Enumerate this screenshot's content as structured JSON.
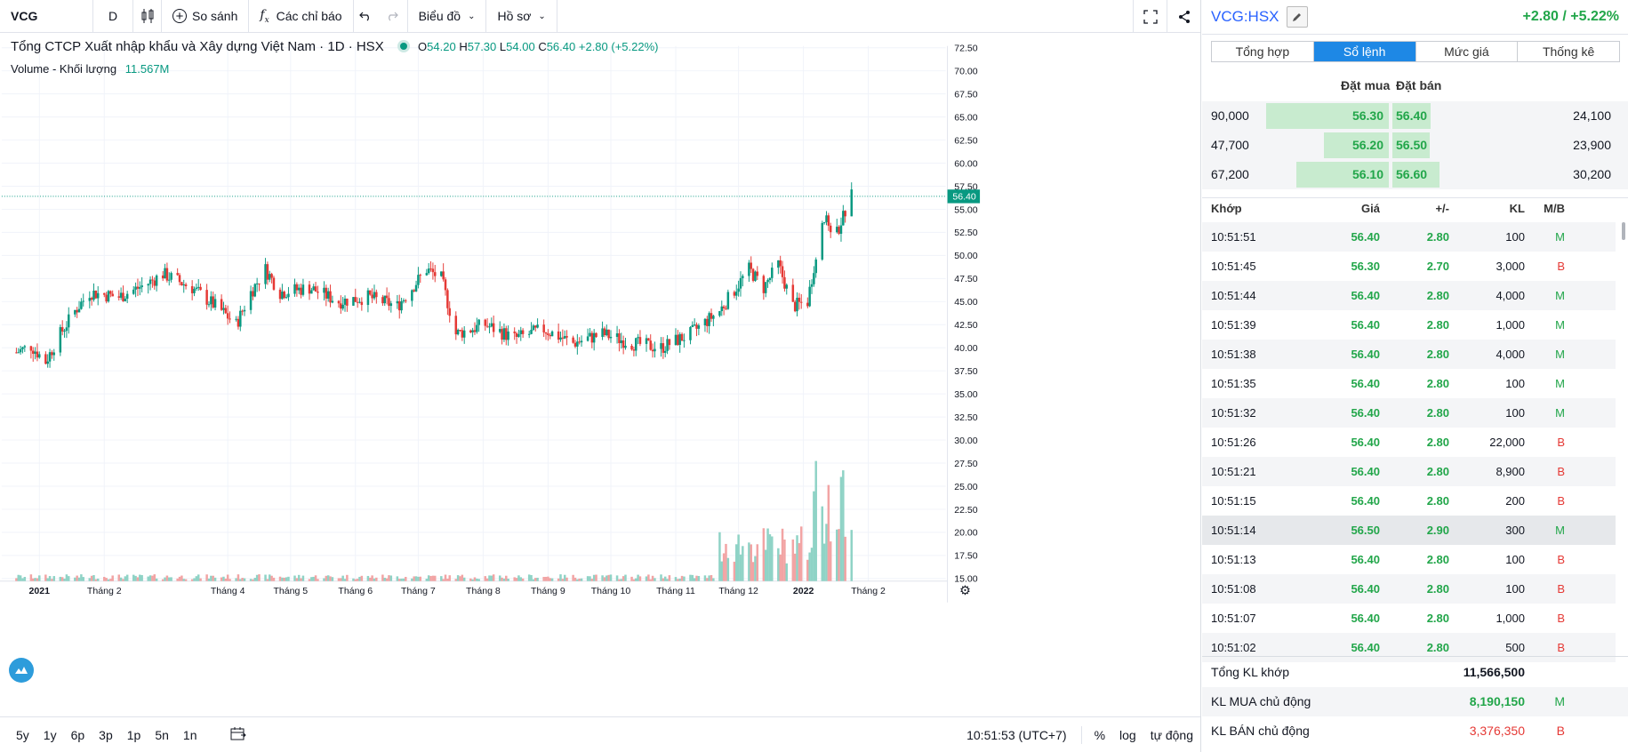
{
  "toolbar": {
    "symbol": "VCG",
    "interval": "D",
    "compare_label": "So sánh",
    "indicators_label": "Các chỉ báo",
    "chart_type_label": "Biểu đồ",
    "profile_label": "Hồ sơ"
  },
  "legend": {
    "name": "Tổng CTCP Xuất nhập khẩu và Xây dựng Việt Nam · 1D · HSX",
    "o_label": "O",
    "o": "54.20",
    "h_label": "H",
    "h": "57.30",
    "l_label": "L",
    "l": "54.00",
    "c_label": "C",
    "c": "56.40",
    "change": "+2.80 (+5.22%)",
    "volume_label": "Volume - Khối lượng",
    "volume_value": "11.567M"
  },
  "chart_data": {
    "type": "candlestick",
    "y_ticks": [
      "72.50",
      "70.00",
      "67.50",
      "65.00",
      "62.50",
      "60.00",
      "57.50",
      "55.00",
      "52.50",
      "50.00",
      "47.50",
      "45.00",
      "42.50",
      "40.00",
      "37.50",
      "35.00",
      "32.50",
      "30.00",
      "27.50",
      "25.00",
      "22.50",
      "20.00",
      "17.50",
      "15.00"
    ],
    "ylim": [
      15.0,
      72.5
    ],
    "last_price_label": "56.40",
    "x_ticks": [
      "2021",
      "Tháng 2",
      "Tháng 4",
      "Tháng 5",
      "Tháng 6",
      "Tháng 7",
      "Tháng 8",
      "Tháng 9",
      "Tháng 10",
      "Tháng 11",
      "Tháng 12",
      "2022",
      "Tháng 2"
    ],
    "close_path": [
      {
        "x": "2020-12-21",
        "y": 39.5
      },
      {
        "x": "2020-12-28",
        "y": 40.2
      },
      {
        "x": "2021-01-04",
        "y": 38.5
      },
      {
        "x": "2021-01-11",
        "y": 41.5
      },
      {
        "x": "2021-01-18",
        "y": 44.0
      },
      {
        "x": "2021-01-25",
        "y": 46.0
      },
      {
        "x": "2021-02-08",
        "y": 45.5
      },
      {
        "x": "2021-02-22",
        "y": 47.0
      },
      {
        "x": "2021-03-01",
        "y": 48.0
      },
      {
        "x": "2021-03-15",
        "y": 46.5
      },
      {
        "x": "2021-03-29",
        "y": 44.0
      },
      {
        "x": "2021-04-05",
        "y": 42.5
      },
      {
        "x": "2021-04-12",
        "y": 46.0
      },
      {
        "x": "2021-04-19",
        "y": 48.5
      },
      {
        "x": "2021-04-26",
        "y": 46.0
      },
      {
        "x": "2021-05-10",
        "y": 46.5
      },
      {
        "x": "2021-05-24",
        "y": 45.0
      },
      {
        "x": "2021-06-07",
        "y": 45.5
      },
      {
        "x": "2021-06-21",
        "y": 44.5
      },
      {
        "x": "2021-07-05",
        "y": 48.5
      },
      {
        "x": "2021-07-12",
        "y": 47.5
      },
      {
        "x": "2021-07-19",
        "y": 41.5
      },
      {
        "x": "2021-08-02",
        "y": 42.5
      },
      {
        "x": "2021-08-16",
        "y": 41.0
      },
      {
        "x": "2021-08-30",
        "y": 42.0
      },
      {
        "x": "2021-09-13",
        "y": 40.5
      },
      {
        "x": "2021-09-27",
        "y": 41.5
      },
      {
        "x": "2021-10-11",
        "y": 40.5
      },
      {
        "x": "2021-10-25",
        "y": 40.0
      },
      {
        "x": "2021-11-08",
        "y": 41.5
      },
      {
        "x": "2021-11-22",
        "y": 44.0
      },
      {
        "x": "2021-12-06",
        "y": 48.5
      },
      {
        "x": "2021-12-13",
        "y": 46.5
      },
      {
        "x": "2021-12-20",
        "y": 49.0
      },
      {
        "x": "2021-12-27",
        "y": 44.5
      },
      {
        "x": "2022-01-03",
        "y": 45.0
      },
      {
        "x": "2022-01-10",
        "y": 54.0
      },
      {
        "x": "2022-01-17",
        "y": 52.5
      },
      {
        "x": "2022-01-24",
        "y": 56.4
      }
    ],
    "volume_note": "volume histogram increases sharply from late November 2021"
  },
  "bottom": {
    "ranges": [
      "5y",
      "1y",
      "6p",
      "3p",
      "1p",
      "5n",
      "1n"
    ],
    "time": "10:51:53 (UTC+7)",
    "percent": "%",
    "log": "log",
    "auto": "tự động"
  },
  "panel": {
    "symbol": "VCG:HSX",
    "change": "+2.80 / +5.22%",
    "tabs": [
      "Tổng hợp",
      "Sổ lệnh",
      "Mức giá",
      "Thống kê"
    ],
    "active_tab": 1,
    "orderbook_headers": {
      "buy": "Đặt mua",
      "sell": "Đặt bán"
    },
    "orderbook": [
      {
        "buy_vol": "90,000",
        "buy_price": "56.30",
        "sell_price": "56.40",
        "sell_vol": "24,100",
        "buy_frac": 1.0,
        "sell_frac": 0.45
      },
      {
        "buy_vol": "47,700",
        "buy_price": "56.20",
        "sell_price": "56.50",
        "sell_vol": "23,900",
        "buy_frac": 0.53,
        "sell_frac": 0.44
      },
      {
        "buy_vol": "67,200",
        "buy_price": "56.10",
        "sell_price": "56.60",
        "sell_vol": "30,200",
        "buy_frac": 0.75,
        "sell_frac": 0.56
      }
    ],
    "trade_headers": {
      "time": "Khớp",
      "price": "Giá",
      "change": "+/-",
      "vol": "KL",
      "side": "M/B"
    },
    "trades": [
      {
        "time": "10:51:51",
        "price": "56.40",
        "change": "2.80",
        "vol": "100",
        "side": "M"
      },
      {
        "time": "10:51:45",
        "price": "56.30",
        "change": "2.70",
        "vol": "3,000",
        "side": "B"
      },
      {
        "time": "10:51:44",
        "price": "56.40",
        "change": "2.80",
        "vol": "4,000",
        "side": "M"
      },
      {
        "time": "10:51:39",
        "price": "56.40",
        "change": "2.80",
        "vol": "1,000",
        "side": "M"
      },
      {
        "time": "10:51:38",
        "price": "56.40",
        "change": "2.80",
        "vol": "4,000",
        "side": "M"
      },
      {
        "time": "10:51:35",
        "price": "56.40",
        "change": "2.80",
        "vol": "100",
        "side": "M"
      },
      {
        "time": "10:51:32",
        "price": "56.40",
        "change": "2.80",
        "vol": "100",
        "side": "M"
      },
      {
        "time": "10:51:26",
        "price": "56.40",
        "change": "2.80",
        "vol": "22,000",
        "side": "B"
      },
      {
        "time": "10:51:21",
        "price": "56.40",
        "change": "2.80",
        "vol": "8,900",
        "side": "B"
      },
      {
        "time": "10:51:15",
        "price": "56.40",
        "change": "2.80",
        "vol": "200",
        "side": "B"
      },
      {
        "time": "10:51:14",
        "price": "56.50",
        "change": "2.90",
        "vol": "300",
        "side": "M"
      },
      {
        "time": "10:51:13",
        "price": "56.40",
        "change": "2.80",
        "vol": "100",
        "side": "B"
      },
      {
        "time": "10:51:08",
        "price": "56.40",
        "change": "2.80",
        "vol": "100",
        "side": "B"
      },
      {
        "time": "10:51:07",
        "price": "56.40",
        "change": "2.80",
        "vol": "1,000",
        "side": "B"
      },
      {
        "time": "10:51:02",
        "price": "56.40",
        "change": "2.80",
        "vol": "500",
        "side": "B"
      }
    ],
    "summary": [
      {
        "label": "Tổng KL khớp",
        "value": "11,566,500",
        "side": ""
      },
      {
        "label": "KL MUA chủ động",
        "value": "8,190,150",
        "side": "M"
      },
      {
        "label": "KL BÁN chủ động",
        "value": "3,376,350",
        "side": "B"
      }
    ],
    "colors": {
      "up": "#22a64a",
      "down": "#e53935",
      "accent": "#1e88e5",
      "teal": "#089981"
    }
  }
}
